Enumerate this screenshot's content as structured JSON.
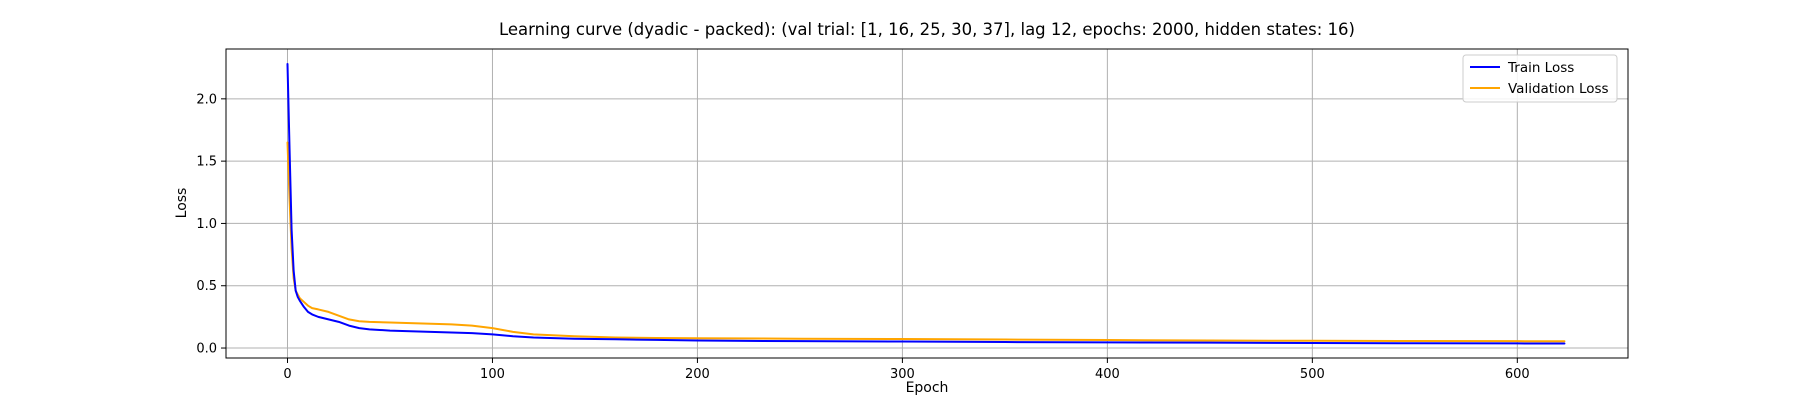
{
  "chart_data": {
    "type": "line",
    "title": "Learning curve (dyadic - packed): (val trial: [1, 16, 25, 30, 37], lag 12, epochs: 2000, hidden states: 16)",
    "xlabel": "Epoch",
    "ylabel": "Loss",
    "xlim": [
      -30,
      654
    ],
    "ylim": [
      -0.08,
      2.4
    ],
    "xticks": [
      0,
      100,
      200,
      300,
      400,
      500,
      600
    ],
    "yticks": [
      0.0,
      0.5,
      1.0,
      1.5,
      2.0
    ],
    "xtick_labels": [
      "0",
      "100",
      "200",
      "300",
      "400",
      "500",
      "600"
    ],
    "ytick_labels": [
      "0.0",
      "0.5",
      "1.0",
      "1.5",
      "2.0"
    ],
    "grid": true,
    "legend_position": "top-right",
    "series": [
      {
        "name": "Train Loss",
        "color": "#0000ff",
        "x": [
          0,
          1,
          2,
          3,
          4,
          5,
          6,
          8,
          10,
          12,
          15,
          20,
          25,
          30,
          35,
          40,
          50,
          60,
          70,
          80,
          90,
          100,
          110,
          120,
          140,
          160,
          180,
          200,
          250,
          300,
          350,
          400,
          450,
          500,
          550,
          600,
          623
        ],
        "y": [
          2.28,
          1.6,
          0.95,
          0.62,
          0.46,
          0.41,
          0.38,
          0.33,
          0.29,
          0.27,
          0.25,
          0.23,
          0.21,
          0.18,
          0.16,
          0.15,
          0.14,
          0.135,
          0.13,
          0.125,
          0.12,
          0.11,
          0.095,
          0.085,
          0.075,
          0.07,
          0.065,
          0.06,
          0.055,
          0.052,
          0.048,
          0.045,
          0.043,
          0.04,
          0.038,
          0.037,
          0.036
        ]
      },
      {
        "name": "Validation Loss",
        "color": "#ffa500",
        "x": [
          0,
          1,
          2,
          3,
          4,
          5,
          6,
          8,
          10,
          12,
          15,
          20,
          25,
          30,
          35,
          40,
          50,
          60,
          70,
          80,
          90,
          100,
          110,
          120,
          140,
          160,
          180,
          200,
          250,
          300,
          350,
          400,
          450,
          500,
          550,
          600,
          623
        ],
        "y": [
          1.65,
          1.2,
          0.8,
          0.56,
          0.46,
          0.43,
          0.4,
          0.37,
          0.34,
          0.32,
          0.31,
          0.29,
          0.26,
          0.23,
          0.215,
          0.21,
          0.205,
          0.2,
          0.195,
          0.19,
          0.18,
          0.16,
          0.13,
          0.11,
          0.095,
          0.085,
          0.08,
          0.078,
          0.075,
          0.072,
          0.068,
          0.064,
          0.06,
          0.058,
          0.056,
          0.055,
          0.054
        ]
      }
    ]
  }
}
